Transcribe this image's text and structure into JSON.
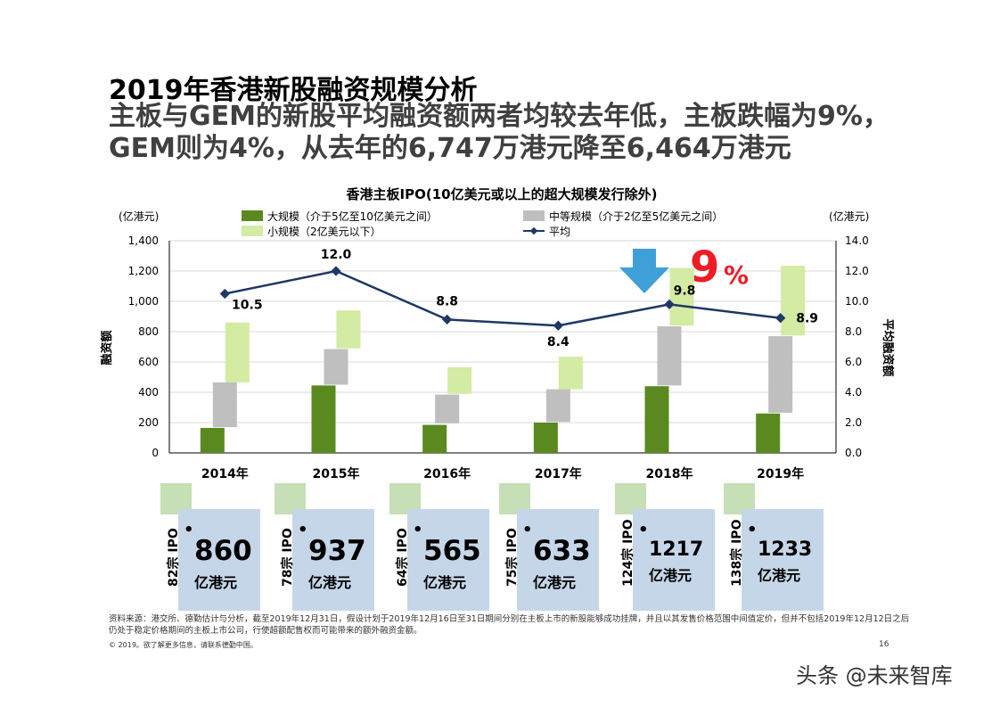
{
  "slide": {
    "title": "2019年香港新股融资规模分析",
    "subtitle": "主板与GEM的新股平均融资额两者均较去年低，主板跌幅为9%，GEM则为4%，从去年的6,747万港元降至6,464万港元",
    "source_note": "资料来源：港交所、德勤估计与分析，截至2019年12月31日，假设计划于2019年12月16日至31日期间分别在主板上市的新股能够成功挂牌，并且以其发售价格范围中间值定价，但并不包括2019年12月12日之后仍处于稳定价格期间的主板上市公司，行使超额配售权而可能带来的额外融资金额。",
    "copyright": "© 2019。欲了解更多信息，请联系德勤中国。",
    "page_number": "16",
    "watermark": "头条 @未来智库"
  },
  "chart_data": {
    "type": "bar",
    "title": "香港主板IPO(10亿美元或以上的超大规模发行除外)",
    "y_left_label": "融资额",
    "y_left_unit": "(亿港元)",
    "y_right_label": "平均融资额",
    "y_right_unit": "(亿港元)",
    "categories": [
      "2014年",
      "2015年",
      "2016年",
      "2017年",
      "2018年",
      "2019年"
    ],
    "ylim_left": [
      0,
      1400
    ],
    "ylim_right": [
      0,
      14
    ],
    "y_left_ticks": [
      "0",
      "200",
      "400",
      "600",
      "800",
      "1,000",
      "1,200",
      "1,400"
    ],
    "y_right_ticks": [
      "0.0",
      "2.0",
      "4.0",
      "6.0",
      "8.0",
      "10.0",
      "12.0",
      "14.0"
    ],
    "series": [
      {
        "name": "大规模（介于5亿至10亿美元之间）",
        "kind": "bar",
        "color": "#5a8a1f",
        "values": [
          165,
          445,
          185,
          200,
          440,
          260
        ]
      },
      {
        "name": "中等规模（介于2亿至5亿美元之间）",
        "kind": "bar",
        "color": "#bfbfbf",
        "ranges": [
          [
            170,
            465
          ],
          [
            450,
            685
          ],
          [
            195,
            385
          ],
          [
            205,
            420
          ],
          [
            445,
            835
          ],
          [
            265,
            770
          ]
        ]
      },
      {
        "name": "小规模（2亿美元以下）",
        "kind": "bar",
        "color": "#d3eba3",
        "ranges": [
          [
            465,
            860
          ],
          [
            690,
            940
          ],
          [
            390,
            565
          ],
          [
            420,
            635
          ],
          [
            840,
            1220
          ],
          [
            775,
            1235
          ]
        ]
      },
      {
        "name": "平均",
        "kind": "line",
        "axis": "right",
        "color": "#1f3864",
        "values": [
          10.5,
          12.0,
          8.8,
          8.4,
          9.8,
          8.9
        ],
        "labels": [
          "10.5",
          "12.0",
          "8.8",
          "8.4",
          "9.8",
          "8.9"
        ]
      }
    ],
    "annotation": {
      "text": "9",
      "suffix": "%",
      "color": "#ee1c25",
      "arrow_color": "#3f9fd9"
    }
  },
  "summary_boxes": [
    {
      "count": "82宗 IPO",
      "value": "860",
      "unit": "亿港元"
    },
    {
      "count": "78宗 IPO",
      "value": "937",
      "unit": "亿港元"
    },
    {
      "count": "64宗 IPO",
      "value": "565",
      "unit": "亿港元"
    },
    {
      "count": "75宗 IPO",
      "value": "633",
      "unit": "亿港元"
    },
    {
      "count": "124宗 IPO",
      "value": "1217",
      "unit": "亿港元"
    },
    {
      "count": "138宗 IPO",
      "value": "1233",
      "unit": "亿港元"
    }
  ]
}
